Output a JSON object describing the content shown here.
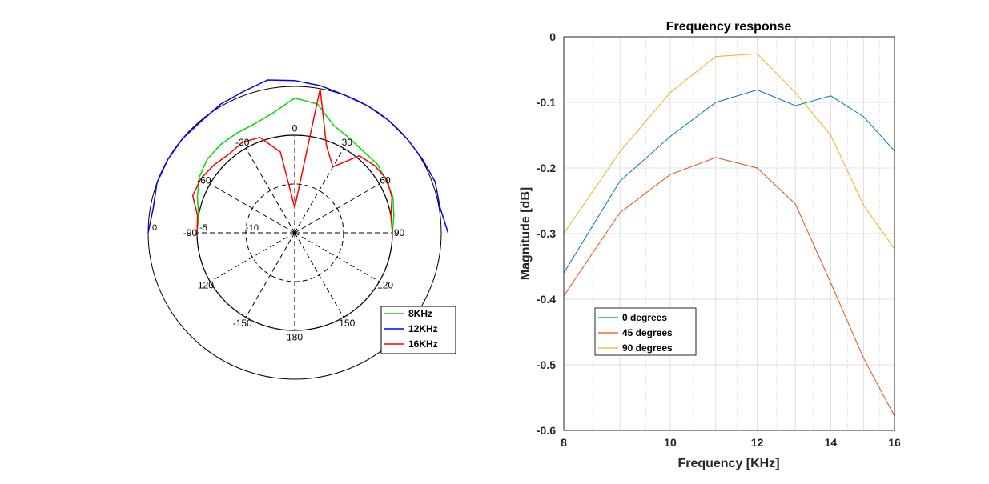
{
  "chart_data": [
    {
      "type": "polar",
      "title": "",
      "rlim": [
        -15,
        0
      ],
      "rtick_labels": [
        "-10",
        "-5",
        "0"
      ],
      "theta_tick_labels": [
        "0",
        "30",
        "60",
        "90",
        "120",
        "150",
        "180",
        "-150",
        "-120",
        "-90",
        "-60",
        "-30"
      ],
      "theta_direction": "clockwise",
      "theta_zero": "top",
      "grid": true,
      "legend_position": "bottom-right",
      "series": [
        {
          "name": "8KHz",
          "color": "#00dd00",
          "theta_deg": [
            -90,
            -80,
            -70,
            -60,
            -50,
            -40,
            -30,
            -20,
            -10,
            0,
            10,
            20,
            30,
            40,
            50,
            60,
            70,
            80,
            90
          ],
          "r": [
            -5.0,
            -5.0,
            -4.4,
            -3.7,
            -3.3,
            -3.2,
            -3.2,
            -3.1,
            -2.5,
            -1.2,
            -1.6,
            -3.3,
            -3.8,
            -4.1,
            -4.0,
            -4.2,
            -4.3,
            -4.7,
            -5.0
          ]
        },
        {
          "name": "12KHz",
          "color": "#0000ff",
          "theta_deg": [
            -90,
            -80,
            -70,
            -60,
            -50,
            -40,
            -30,
            -20,
            -10,
            0,
            10,
            20,
            30,
            40,
            50,
            60,
            70,
            80,
            90
          ],
          "r": [
            0.0,
            -0.3,
            0.0,
            0.0,
            0.0,
            -0.1,
            0.2,
            0.4,
            0.9,
            0.6,
            0.3,
            0.0,
            0.0,
            0.0,
            0.0,
            0.1,
            0.3,
            0.1,
            0.7
          ]
        },
        {
          "name": "16KHz",
          "color": "#ff0000",
          "theta_deg": [
            -90,
            -80,
            -70,
            -60,
            -50,
            -40,
            -30,
            -20,
            -10,
            0,
            10,
            20,
            30,
            40,
            50,
            60,
            70,
            80,
            90
          ],
          "r": [
            -5.0,
            -4.9,
            -3.9,
            -3.9,
            -4.2,
            -4.5,
            -4.3,
            -4.6,
            -6.6,
            -12.4,
            0.0,
            -5.5,
            -7.2,
            -4.7,
            -4.3,
            -4.1,
            -4.4,
            -5.0,
            -5.0
          ]
        }
      ]
    },
    {
      "type": "line",
      "title": "Frequency response",
      "xlabel": "Frequency [KHz]",
      "ylabel": "Magnitude [dB]",
      "xlim": [
        8,
        16
      ],
      "ylim": [
        -0.6,
        0
      ],
      "x_ticks": [
        8,
        10,
        12,
        14,
        16
      ],
      "y_ticks": [
        0,
        -0.1,
        -0.2,
        -0.3,
        -0.4,
        -0.5,
        -0.6
      ],
      "grid": true,
      "legend_position": "bottom-left",
      "x": [
        8,
        9,
        10,
        11,
        12,
        13,
        14,
        15,
        16
      ],
      "series": [
        {
          "name": "0 degrees",
          "color": "#0072bd",
          "values": [
            -0.36,
            -0.22,
            -0.152,
            -0.1,
            -0.081,
            -0.105,
            -0.09,
            -0.122,
            -0.174
          ]
        },
        {
          "name": "45 degrees",
          "color": "#d95319",
          "values": [
            -0.395,
            -0.268,
            -0.21,
            -0.184,
            -0.2,
            -0.255,
            -0.375,
            -0.49,
            -0.578
          ]
        },
        {
          "name": "90 degrees",
          "color": "#edb120",
          "values": [
            -0.3,
            -0.175,
            -0.085,
            -0.03,
            -0.026,
            -0.085,
            -0.15,
            -0.257,
            -0.323
          ]
        }
      ]
    }
  ]
}
